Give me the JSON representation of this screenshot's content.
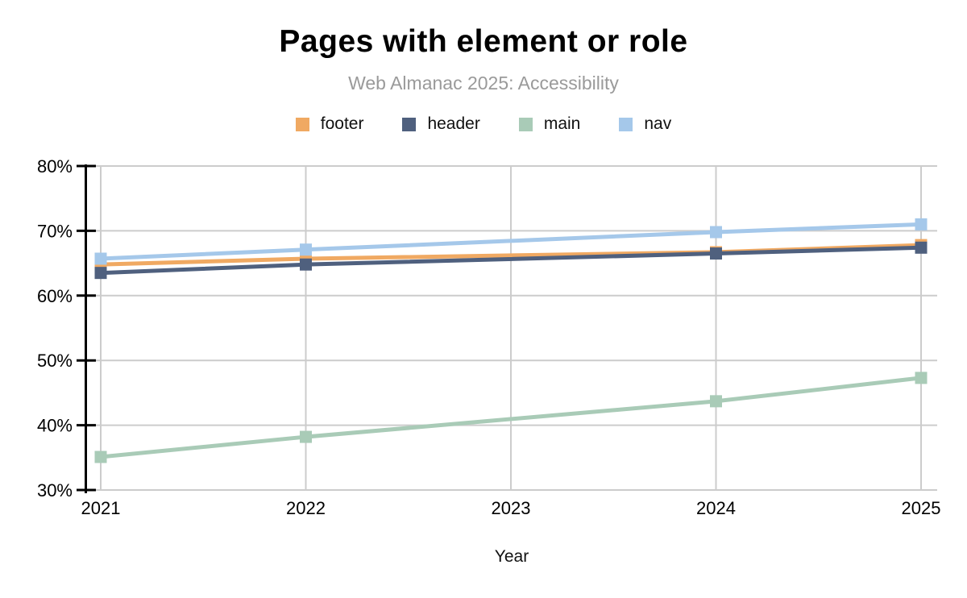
{
  "title": "Pages with element or role",
  "subtitle": "Web Almanac 2025: Accessibility",
  "chart_data": {
    "type": "line",
    "title": "Pages with element or role",
    "subtitle": "Web Almanac 2025: Accessibility",
    "xlabel": "Year",
    "ylabel": "",
    "x": [
      2021,
      2022,
      2024,
      2025
    ],
    "x_axis_ticks": [
      "2021",
      "2022",
      "2023",
      "2024",
      "2025"
    ],
    "y_ticks": [
      30,
      40,
      50,
      60,
      70,
      80
    ],
    "y_tick_suffix": "%",
    "ylim": [
      30,
      80
    ],
    "xlim": [
      2021,
      2025
    ],
    "grid": true,
    "legend_position": "top",
    "marker": "square",
    "note": "no data point for 2023; lines connect 2022 directly to 2024",
    "series": [
      {
        "name": "footer",
        "color": "#F0A962",
        "values": [
          64.8,
          65.7,
          66.7,
          67.8
        ]
      },
      {
        "name": "header",
        "color": "#4F607E",
        "values": [
          63.5,
          64.8,
          66.5,
          67.4
        ]
      },
      {
        "name": "main",
        "color": "#A9CBB7",
        "values": [
          35.1,
          38.2,
          43.7,
          47.3
        ]
      },
      {
        "name": "nav",
        "color": "#A5C8EA",
        "values": [
          65.7,
          67.1,
          69.8,
          71.0
        ]
      }
    ],
    "colors": {
      "grid": "#cccccc",
      "axis": "#000000",
      "tick_label": "#000000",
      "subtitle": "#9a9a9a"
    }
  }
}
